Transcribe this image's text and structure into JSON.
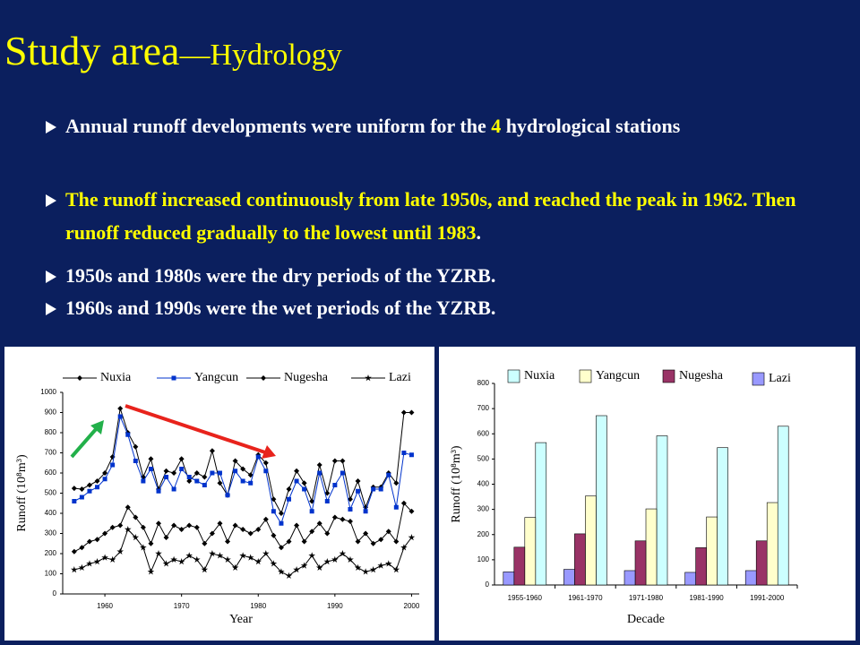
{
  "title": {
    "main": "Study area",
    "sub": "—Hydrology"
  },
  "bullets": [
    {
      "parts": [
        "Annual runoff developments were uniform for the ",
        "4",
        " hydrological stations"
      ]
    },
    {
      "parts": [
        "The runoff increased continuously from late 1950s, and reached the peak in 1962. Then runoff reduced gradually to the lowest until 1983",
        "."
      ]
    },
    {
      "parts": [
        "1950s and 1980s were the dry periods of the YZRB."
      ]
    },
    {
      "parts": [
        "1960s and 1990s were the wet periods of the YZRB."
      ]
    }
  ],
  "chart_data": [
    {
      "type": "line",
      "xlabel": "Year",
      "ylabel": "Runoff (10⁸m³)",
      "x": [
        1956,
        1957,
        1958,
        1959,
        1960,
        1961,
        1962,
        1963,
        1964,
        1965,
        1966,
        1967,
        1968,
        1969,
        1970,
        1971,
        1972,
        1973,
        1974,
        1975,
        1976,
        1977,
        1978,
        1979,
        1980,
        1981,
        1982,
        1983,
        1984,
        1985,
        1986,
        1987,
        1988,
        1989,
        1990,
        1991,
        1992,
        1993,
        1994,
        1995,
        1996,
        1997,
        1998,
        1999,
        2000
      ],
      "xlim": [
        1954.5,
        2001
      ],
      "xticks": [
        1960,
        1970,
        1980,
        1990,
        2000
      ],
      "ylim": [
        0,
        1000
      ],
      "yticks": [
        0,
        100,
        200,
        300,
        400,
        500,
        600,
        700,
        800,
        900,
        1000
      ],
      "series": [
        {
          "name": "Nuxia",
          "color": "#000000",
          "marker": "diamond",
          "values": [
            524,
            520,
            540,
            560,
            600,
            680,
            920,
            800,
            730,
            580,
            670,
            520,
            610,
            600,
            670,
            560,
            600,
            580,
            710,
            550,
            490,
            660,
            620,
            590,
            690,
            650,
            470,
            400,
            520,
            610,
            550,
            460,
            640,
            500,
            660,
            660,
            470,
            560,
            430,
            530,
            530,
            600,
            550,
            900,
            900
          ]
        },
        {
          "name": "Yangcun",
          "color": "#0033cc",
          "marker": "square",
          "values": [
            460,
            480,
            510,
            530,
            570,
            640,
            880,
            790,
            660,
            560,
            620,
            510,
            580,
            520,
            620,
            580,
            560,
            540,
            600,
            600,
            490,
            610,
            560,
            550,
            680,
            610,
            410,
            350,
            470,
            560,
            520,
            410,
            600,
            460,
            540,
            600,
            420,
            510,
            410,
            520,
            520,
            590,
            430,
            700,
            690
          ]
        },
        {
          "name": "Nugesha",
          "color": "#000000",
          "marker": "diamond",
          "values": [
            210,
            230,
            260,
            270,
            300,
            330,
            340,
            430,
            380,
            330,
            250,
            350,
            280,
            340,
            320,
            340,
            330,
            250,
            300,
            350,
            260,
            340,
            320,
            300,
            320,
            370,
            290,
            230,
            260,
            340,
            260,
            310,
            350,
            300,
            380,
            370,
            360,
            260,
            300,
            250,
            270,
            310,
            260,
            450,
            410
          ]
        },
        {
          "name": "Lazi",
          "color": "#000000",
          "marker": "star",
          "values": [
            120,
            130,
            150,
            160,
            180,
            170,
            210,
            320,
            280,
            230,
            110,
            200,
            150,
            170,
            160,
            190,
            170,
            120,
            200,
            190,
            170,
            130,
            190,
            180,
            160,
            200,
            150,
            110,
            90,
            120,
            140,
            190,
            130,
            160,
            170,
            200,
            170,
            130,
            110,
            120,
            140,
            150,
            120,
            230,
            280
          ]
        }
      ]
    },
    {
      "type": "bar",
      "xlabel": "Decade",
      "ylabel": "Runoff (10⁸m³)",
      "categories": [
        "1955-1960",
        "1961-1970",
        "1971-1980",
        "1981-1990",
        "1991-2000"
      ],
      "ylim": [
        0,
        800
      ],
      "yticks": [
        0,
        100,
        200,
        300,
        400,
        500,
        600,
        700,
        800
      ],
      "series": [
        {
          "name": "Nuxia",
          "color": "#ccffff",
          "values": [
            565,
            672,
            592,
            545,
            630
          ]
        },
        {
          "name": "Yangcun",
          "color": "#ffffcc",
          "values": [
            268,
            353,
            302,
            270,
            327
          ]
        },
        {
          "name": "Nugesha",
          "color": "#993366",
          "values": [
            150,
            203,
            175,
            148,
            175
          ]
        },
        {
          "name": "Lazi",
          "color": "#9999ff",
          "values": [
            52,
            62,
            57,
            50,
            57
          ]
        }
      ]
    }
  ]
}
